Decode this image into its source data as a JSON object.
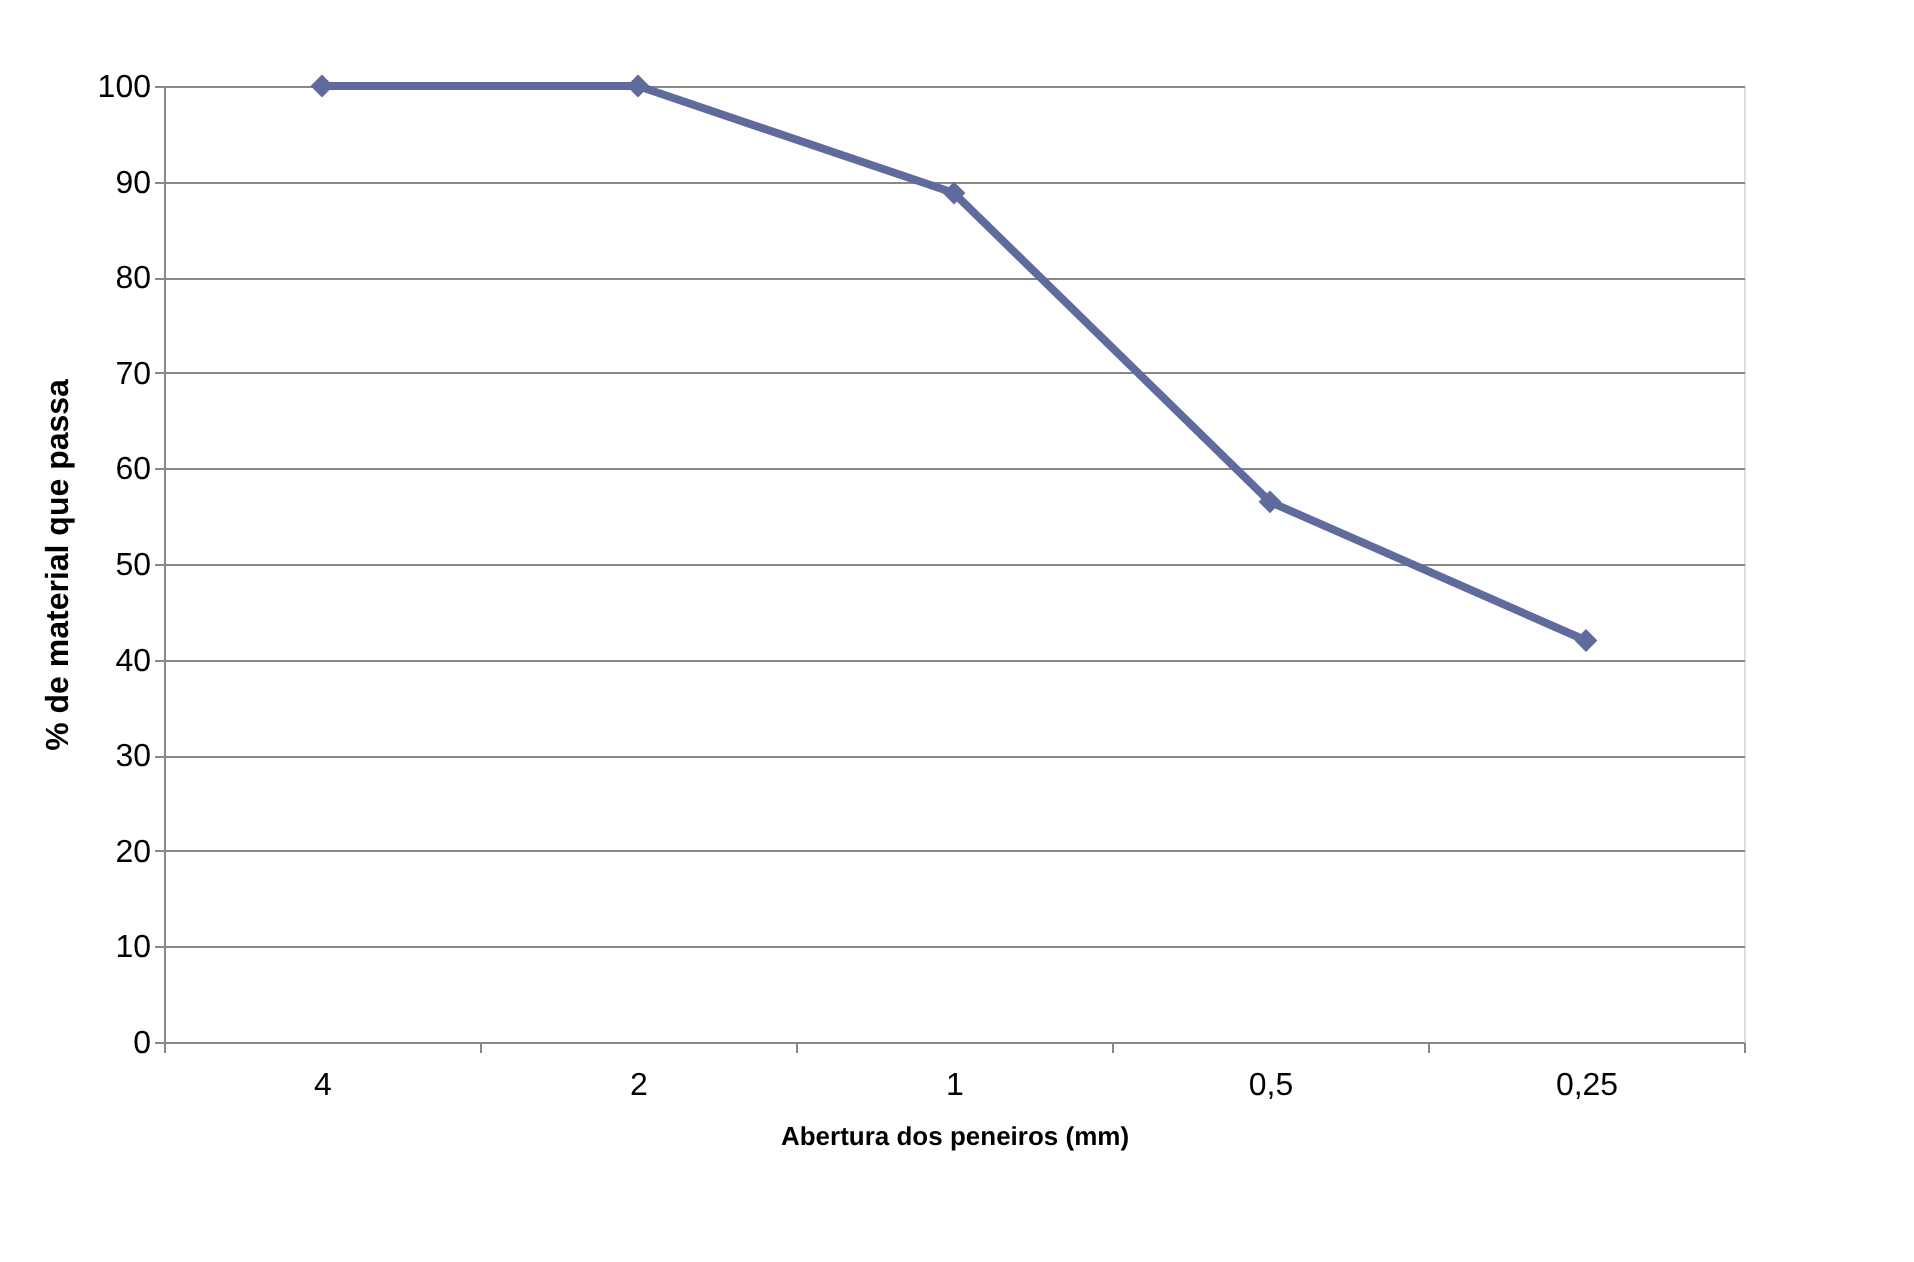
{
  "chart_data": {
    "type": "line",
    "xlabel": "Abertura dos peneiros (mm)",
    "ylabel": "% de material que passa",
    "categories": [
      "4",
      "2",
      "1",
      "0,5",
      "0,25"
    ],
    "series": [
      {
        "color": "#5f6b9c",
        "values": [
          100,
          100,
          88.8,
          56.5,
          42
        ]
      }
    ],
    "ylim": [
      0,
      100
    ],
    "yticks": [
      0,
      10,
      20,
      30,
      40,
      50,
      60,
      70,
      80,
      90,
      100
    ],
    "grid": "y",
    "marker": "diamond",
    "line_style": "solid"
  }
}
